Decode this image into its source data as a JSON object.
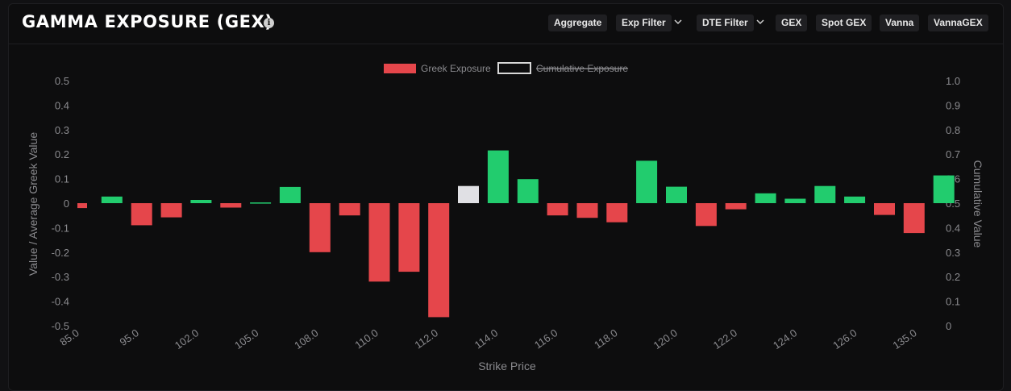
{
  "header": {
    "title": "GAMMA EXPOSURE (GEX)",
    "info_icon": "info-icon",
    "buttons": {
      "aggregate": "Aggregate",
      "exp_filter": "Exp Filter",
      "dte_filter": "DTE Filter",
      "gex": "GEX",
      "spot_gex": "Spot GEX",
      "vanna": "Vanna",
      "vannagex": "VannaGEX"
    }
  },
  "colors": {
    "positive": "#22cc6e",
    "negative": "#e5464b",
    "spot": "#e0e0e4",
    "axis_text": "#8a8a8e"
  },
  "chart_data": {
    "type": "bar",
    "xlabel": "Strike Price",
    "ylabel": "Value / Average Greek Value",
    "y2label": "Cumulative Value",
    "ylim": [
      -0.5,
      0.5
    ],
    "y2lim": [
      0,
      1
    ],
    "yticks": [
      "0.5",
      "0.4",
      "0.3",
      "0.2",
      "0.1",
      "0",
      "-0.1",
      "-0.2",
      "-0.3",
      "-0.4",
      "-0.5"
    ],
    "y2ticks": [
      "1.0",
      "0.9",
      "0.8",
      "0.7",
      "0.6",
      "0.5",
      "0.4",
      "0.3",
      "0.2",
      "0.1",
      "0"
    ],
    "xticks": [
      "85.0",
      "95.0",
      "102.0",
      "105.0",
      "108.0",
      "110.0",
      "112.0",
      "114.0",
      "116.0",
      "118.0",
      "120.0",
      "122.0",
      "124.0",
      "126.0",
      "135.0"
    ],
    "legend": [
      {
        "label": "Greek Exposure",
        "hidden": false
      },
      {
        "label": "Cumulative Exposure",
        "hidden": true
      }
    ],
    "legend_position": "top-center",
    "grid": false,
    "highlight_index": 13,
    "values": [
      -0.02,
      0.027,
      -0.09,
      -0.058,
      0.013,
      -0.018,
      0.003,
      0.066,
      -0.2,
      -0.05,
      -0.32,
      -0.28,
      -0.465,
      0.07,
      0.215,
      0.098,
      -0.05,
      -0.06,
      -0.078,
      0.173,
      0.067,
      -0.093,
      -0.025,
      0.04,
      0.018,
      0.07,
      0.027,
      -0.048,
      -0.122,
      0.113
    ]
  }
}
